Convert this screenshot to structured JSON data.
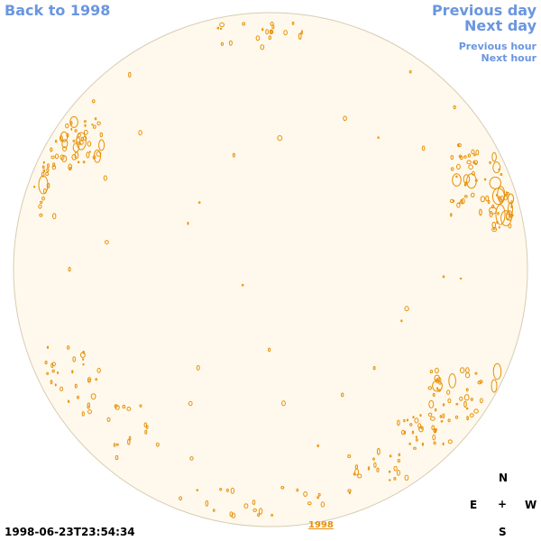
{
  "nav": {
    "back": "Back to 1998",
    "previous_day": "Previous day",
    "next_day": "Next day",
    "previous_hour": "Previous hour",
    "next_hour": "Next hour"
  },
  "timestamp": "1998-06-23T23:54:34",
  "year_link": "1998",
  "compass": {
    "north": "N",
    "east": "E",
    "center": "+",
    "west": "W",
    "south": "S"
  },
  "colors": {
    "disk_fill": "#fef9ec",
    "disk_edge": "#d8ccb4",
    "contour": "#e8900a",
    "link": "#6a96e0"
  }
}
